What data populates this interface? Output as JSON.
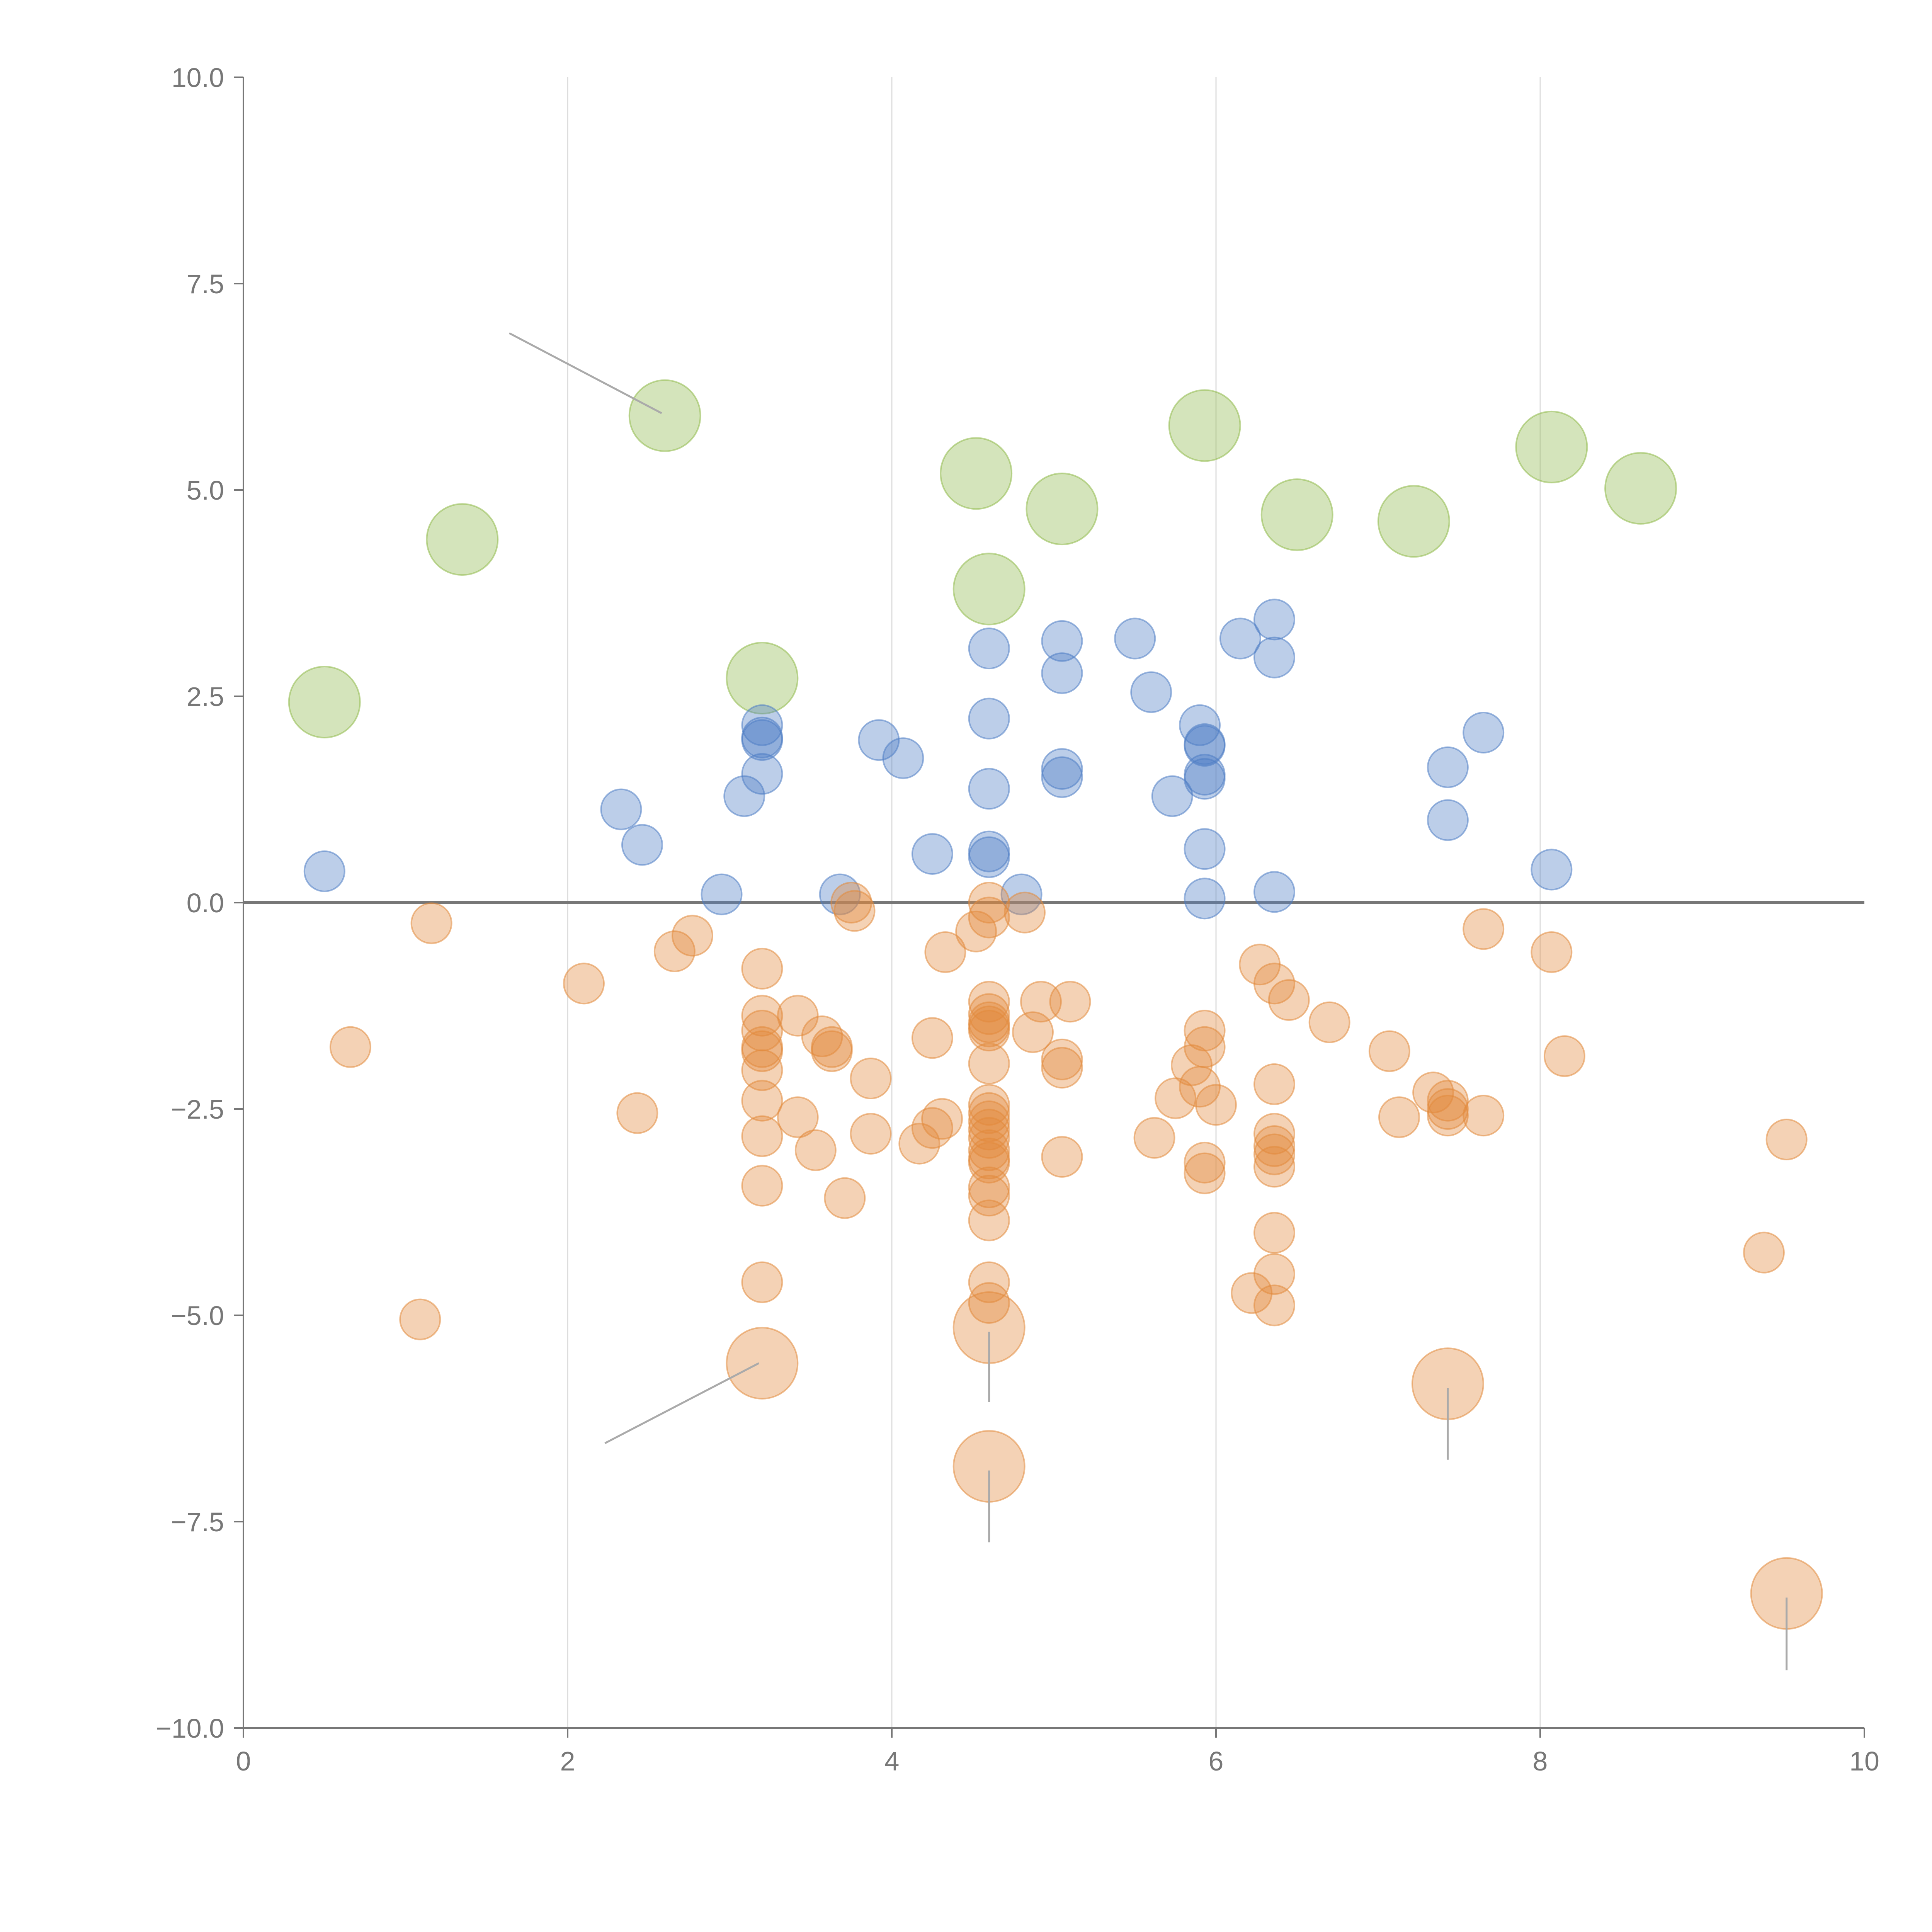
{
  "colors": {
    "green": "#8fb94b",
    "blue": "#4e7ec5",
    "orange": "#e18a3d",
    "axis": "#777777",
    "grid": "#dddddd"
  },
  "chart_data": {
    "type": "scatter",
    "xlim": [
      0,
      10
    ],
    "ylim": [
      -10,
      10
    ],
    "x_ticks": [
      "0",
      "2",
      "4",
      "6",
      "8",
      "10"
    ],
    "y_ticks": [
      "10.0",
      "7.5",
      "5.0",
      "2.5",
      "0.0",
      "−2.5",
      "−5.0",
      "−7.5",
      "−10.0"
    ],
    "grid": "vertical",
    "zero_line": true,
    "series": [
      {
        "color": "green",
        "size": "large",
        "points": [
          [
            0.5,
            2.43
          ],
          [
            1.35,
            4.4
          ],
          [
            2.6,
            5.9
          ],
          [
            3.2,
            2.72
          ],
          [
            4.52,
            5.2
          ],
          [
            4.6,
            3.8
          ],
          [
            5.05,
            4.77
          ],
          [
            5.93,
            5.78
          ],
          [
            6.5,
            4.7
          ],
          [
            7.22,
            4.62
          ],
          [
            8.07,
            5.52
          ],
          [
            8.62,
            5.02
          ]
        ]
      },
      {
        "color": "blue",
        "size": "small",
        "points": [
          [
            0.5,
            0.38
          ],
          [
            2.33,
            1.13
          ],
          [
            2.46,
            0.7
          ],
          [
            2.95,
            0.1
          ],
          [
            3.09,
            1.29
          ],
          [
            3.2,
            2.15
          ],
          [
            3.2,
            1.97
          ],
          [
            3.2,
            2.0
          ],
          [
            3.2,
            1.56
          ],
          [
            3.68,
            0.1
          ],
          [
            3.92,
            1.97
          ],
          [
            4.07,
            1.75
          ],
          [
            4.25,
            0.59
          ],
          [
            4.6,
            3.08
          ],
          [
            4.6,
            2.23
          ],
          [
            4.6,
            1.38
          ],
          [
            4.6,
            0.62
          ],
          [
            4.6,
            0.55
          ],
          [
            4.8,
            0.1
          ],
          [
            5.05,
            3.17
          ],
          [
            5.05,
            2.78
          ],
          [
            5.05,
            1.62
          ],
          [
            5.05,
            1.52
          ],
          [
            5.5,
            3.2
          ],
          [
            5.6,
            2.55
          ],
          [
            5.73,
            1.29
          ],
          [
            5.9,
            2.15
          ],
          [
            5.93,
            1.92
          ],
          [
            5.93,
            1.9
          ],
          [
            5.93,
            1.55
          ],
          [
            5.93,
            1.5
          ],
          [
            5.93,
            0.65
          ],
          [
            5.93,
            0.05
          ],
          [
            6.15,
            3.2
          ],
          [
            6.36,
            3.43
          ],
          [
            6.36,
            2.97
          ],
          [
            6.36,
            0.13
          ],
          [
            7.43,
            1.64
          ],
          [
            7.43,
            1.0
          ],
          [
            7.65,
            2.06
          ],
          [
            8.07,
            0.4
          ]
        ]
      },
      {
        "color": "orange",
        "size": "small",
        "points": [
          [
            0.66,
            -1.75
          ],
          [
            1.09,
            -5.05
          ],
          [
            1.16,
            -0.25
          ],
          [
            2.1,
            -0.98
          ],
          [
            2.43,
            -2.55
          ],
          [
            2.66,
            -0.59
          ],
          [
            2.77,
            -0.4
          ],
          [
            3.2,
            -0.8
          ],
          [
            3.2,
            -1.37
          ],
          [
            3.2,
            -1.55
          ],
          [
            3.2,
            -1.75
          ],
          [
            3.2,
            -1.8
          ],
          [
            3.2,
            -2.03
          ],
          [
            3.2,
            -2.4
          ],
          [
            3.2,
            -2.83
          ],
          [
            3.2,
            -3.43
          ],
          [
            3.2,
            -4.6
          ],
          [
            3.42,
            -1.37
          ],
          [
            3.42,
            -2.6
          ],
          [
            3.53,
            -3.0
          ],
          [
            3.57,
            -1.62
          ],
          [
            3.63,
            -1.8
          ],
          [
            3.63,
            -1.75
          ],
          [
            3.71,
            -3.58
          ],
          [
            3.75,
            0.0
          ],
          [
            3.77,
            -0.1
          ],
          [
            3.87,
            -2.13
          ],
          [
            3.87,
            -2.8
          ],
          [
            4.17,
            -2.92
          ],
          [
            4.25,
            -1.64
          ],
          [
            4.25,
            -2.73
          ],
          [
            4.31,
            -2.62
          ],
          [
            4.33,
            -0.6
          ],
          [
            4.52,
            -0.35
          ],
          [
            4.6,
            0.0
          ],
          [
            4.6,
            -0.18
          ],
          [
            4.6,
            -1.2
          ],
          [
            4.6,
            -1.35
          ],
          [
            4.6,
            -1.45
          ],
          [
            4.6,
            -1.5
          ],
          [
            4.6,
            -1.55
          ],
          [
            4.6,
            -1.95
          ],
          [
            4.6,
            -2.45
          ],
          [
            4.6,
            -2.55
          ],
          [
            4.6,
            -2.65
          ],
          [
            4.6,
            -2.75
          ],
          [
            4.6,
            -2.85
          ],
          [
            4.6,
            -3.0
          ],
          [
            4.6,
            -3.1
          ],
          [
            4.6,
            -3.15
          ],
          [
            4.6,
            -3.45
          ],
          [
            4.6,
            -3.55
          ],
          [
            4.6,
            -3.85
          ],
          [
            4.6,
            -4.6
          ],
          [
            4.6,
            -4.85
          ],
          [
            4.82,
            -0.12
          ],
          [
            4.87,
            -1.57
          ],
          [
            4.92,
            -1.2
          ],
          [
            5.05,
            -1.9
          ],
          [
            5.05,
            -2.0
          ],
          [
            5.05,
            -3.08
          ],
          [
            5.1,
            -1.2
          ],
          [
            5.62,
            -2.85
          ],
          [
            5.75,
            -2.37
          ],
          [
            5.85,
            -1.97
          ],
          [
            5.9,
            -2.23
          ],
          [
            5.93,
            -1.55
          ],
          [
            5.93,
            -1.75
          ],
          [
            5.93,
            -3.15
          ],
          [
            5.93,
            -3.28
          ],
          [
            6.0,
            -2.45
          ],
          [
            6.22,
            -4.73
          ],
          [
            6.27,
            -0.75
          ],
          [
            6.36,
            -0.98
          ],
          [
            6.36,
            -2.2
          ],
          [
            6.36,
            -2.8
          ],
          [
            6.36,
            -2.95
          ],
          [
            6.36,
            -3.05
          ],
          [
            6.36,
            -3.2
          ],
          [
            6.36,
            -4.0
          ],
          [
            6.36,
            -4.5
          ],
          [
            6.36,
            -4.88
          ],
          [
            6.45,
            -1.18
          ],
          [
            6.7,
            -1.45
          ],
          [
            7.07,
            -1.8
          ],
          [
            7.13,
            -2.6
          ],
          [
            7.34,
            -2.3
          ],
          [
            7.43,
            -2.4
          ],
          [
            7.43,
            -2.5
          ],
          [
            7.43,
            -2.58
          ],
          [
            7.65,
            -2.58
          ],
          [
            7.65,
            -0.32
          ],
          [
            8.07,
            -0.6
          ],
          [
            8.15,
            -1.86
          ],
          [
            9.38,
            -4.24
          ],
          [
            9.52,
            -2.87
          ]
        ]
      },
      {
        "color": "orange",
        "size": "large",
        "points": [
          [
            3.2,
            -5.58
          ],
          [
            4.6,
            -5.15
          ],
          [
            4.6,
            -6.83
          ],
          [
            7.43,
            -5.83
          ],
          [
            9.52,
            -8.37
          ]
        ]
      }
    ]
  }
}
